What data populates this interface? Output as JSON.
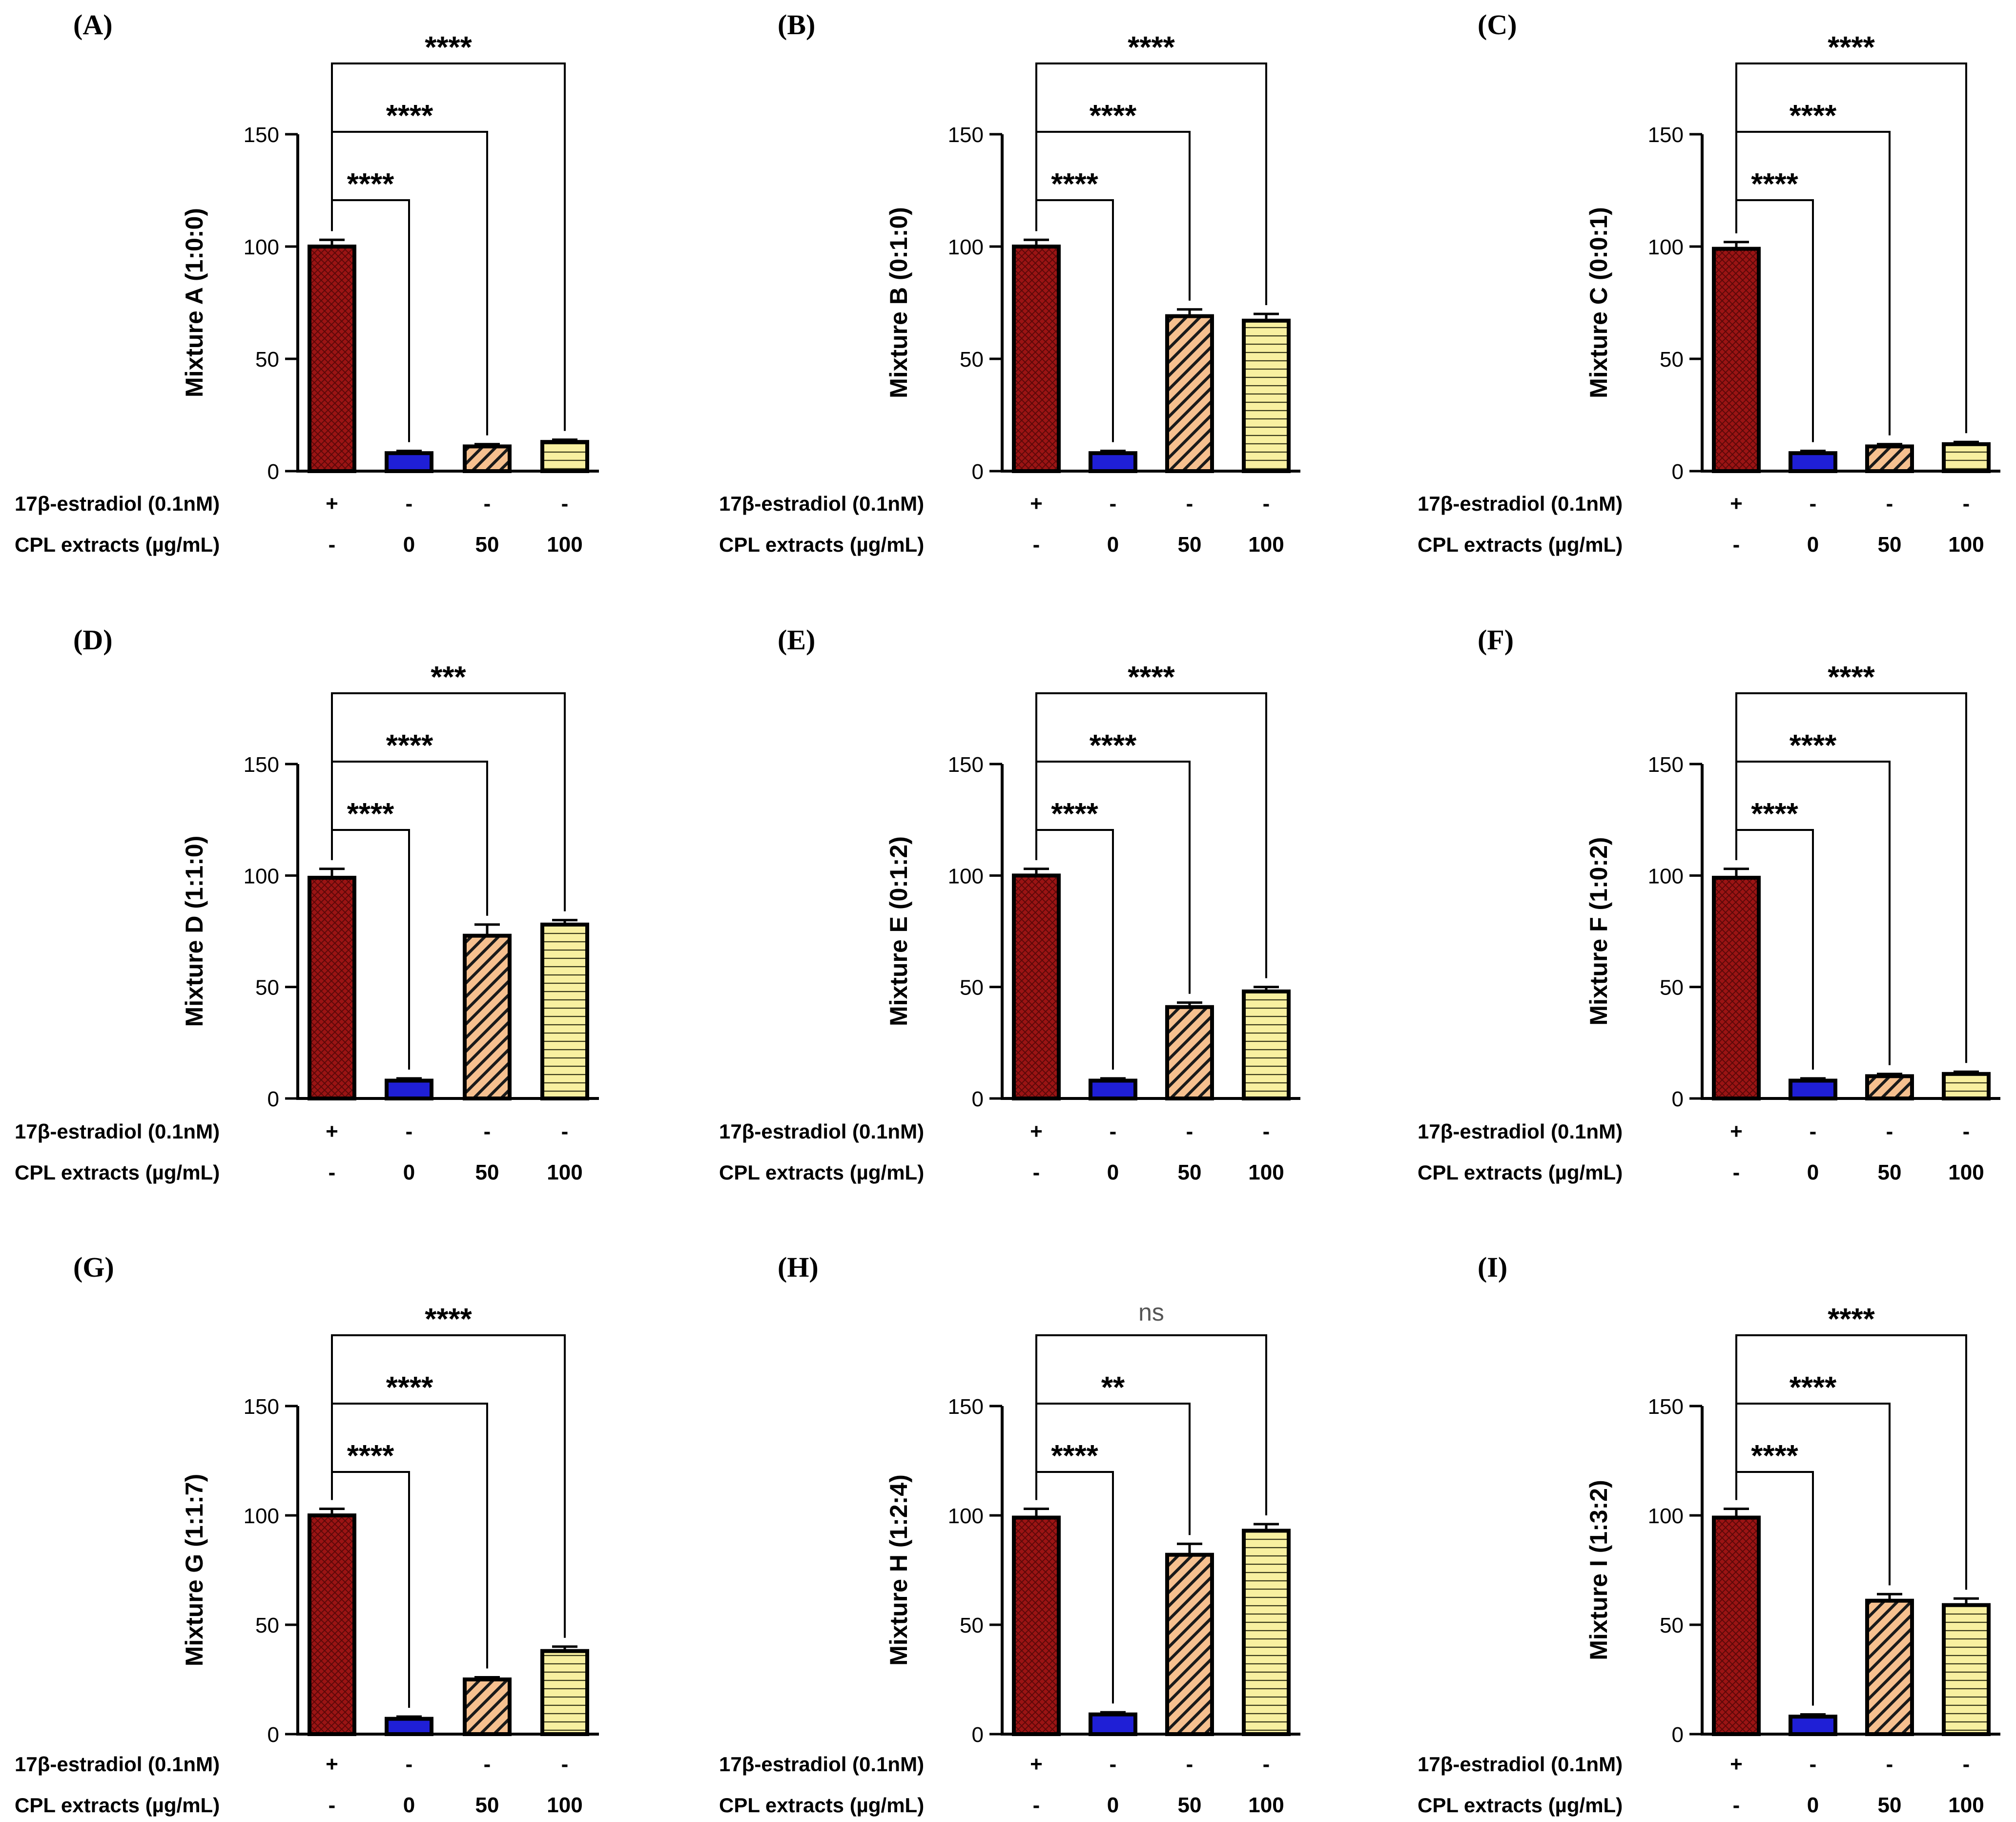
{
  "row_labels": {
    "estradiol": "17β-estradiol (0.1nM)",
    "extract": "CPL extracts (µg/mL)"
  },
  "estradiol_values": [
    "+",
    "-",
    "-",
    "-"
  ],
  "extract_values": [
    "-",
    "0",
    "50",
    "100"
  ],
  "bar_colors": {
    "estradiol": "#9b1414",
    "control": "#1f1fd6",
    "cpl50": "#f6c08f",
    "cpl100": "#f8f0a0"
  },
  "chart_data": [
    {
      "type": "bar",
      "panel": "(A)",
      "ylabel": "Mixture A (1:0:0)",
      "ylim": [
        0,
        150
      ],
      "yticks": [
        0,
        50,
        100,
        150
      ],
      "values": [
        100,
        8,
        11,
        13
      ],
      "errors": [
        3,
        1,
        1,
        1
      ],
      "significance": [
        "****",
        "****",
        "****"
      ]
    },
    {
      "type": "bar",
      "panel": "(B)",
      "ylabel": "Mixture B (0:1:0)",
      "ylim": [
        0,
        150
      ],
      "yticks": [
        0,
        50,
        100,
        150
      ],
      "values": [
        100,
        8,
        69,
        67
      ],
      "errors": [
        3,
        1,
        3,
        3
      ],
      "significance": [
        "****",
        "****",
        "****"
      ]
    },
    {
      "type": "bar",
      "panel": "(C)",
      "ylabel": "Mixture C (0:0:1)",
      "ylim": [
        0,
        150
      ],
      "yticks": [
        0,
        50,
        100,
        150
      ],
      "values": [
        99,
        8,
        11,
        12
      ],
      "errors": [
        3,
        1,
        1,
        1
      ],
      "significance": [
        "****",
        "****",
        "****"
      ]
    },
    {
      "type": "bar",
      "panel": "(D)",
      "ylabel": "Mixture D (1:1:0)",
      "ylim": [
        0,
        150
      ],
      "yticks": [
        0,
        50,
        100,
        150
      ],
      "values": [
        99,
        8,
        73,
        78
      ],
      "errors": [
        4,
        1,
        5,
        2
      ],
      "significance": [
        "****",
        "****",
        "***"
      ]
    },
    {
      "type": "bar",
      "panel": "(E)",
      "ylabel": "Mixture E (0:1:2)",
      "ylim": [
        0,
        150
      ],
      "yticks": [
        0,
        50,
        100,
        150
      ],
      "values": [
        100,
        8,
        41,
        48
      ],
      "errors": [
        3,
        1,
        2,
        2
      ],
      "significance": [
        "****",
        "****",
        "****"
      ]
    },
    {
      "type": "bar",
      "panel": "(F)",
      "ylabel": "Mixture F (1:0:2)",
      "ylim": [
        0,
        150
      ],
      "yticks": [
        0,
        50,
        100,
        150
      ],
      "values": [
        99,
        8,
        10,
        11
      ],
      "errors": [
        4,
        1,
        1,
        1
      ],
      "significance": [
        "****",
        "****",
        "****"
      ]
    },
    {
      "type": "bar",
      "panel": "(G)",
      "ylabel": "Mixture G (1:1:7)",
      "ylim": [
        0,
        150
      ],
      "yticks": [
        0,
        50,
        100,
        150
      ],
      "values": [
        100,
        7,
        25,
        38
      ],
      "errors": [
        3,
        1,
        1,
        2
      ],
      "significance": [
        "****",
        "****",
        "****"
      ]
    },
    {
      "type": "bar",
      "panel": "(H)",
      "ylabel": "Mixture H (1:2:4)",
      "ylim": [
        0,
        150
      ],
      "yticks": [
        0,
        50,
        100,
        150
      ],
      "values": [
        99,
        9,
        82,
        93
      ],
      "errors": [
        4,
        1,
        5,
        3
      ],
      "significance": [
        "****",
        "**",
        "ns"
      ]
    },
    {
      "type": "bar",
      "panel": "(I)",
      "ylabel": "Mixture I (1:3:2)",
      "ylim": [
        0,
        150
      ],
      "yticks": [
        0,
        50,
        100,
        150
      ],
      "values": [
        99,
        8,
        61,
        59
      ],
      "errors": [
        4,
        1,
        3,
        3
      ],
      "significance": [
        "****",
        "****",
        "****"
      ]
    }
  ]
}
